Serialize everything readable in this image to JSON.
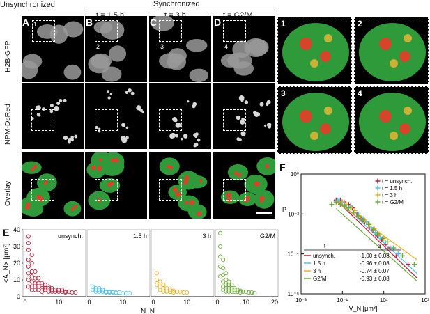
{
  "header": {
    "unsync_label": "Unsynchronized",
    "sync_label": "Synchronized",
    "col_labels": [
      "t = 1.5 h",
      "t = 3 h",
      "t = G2/M"
    ]
  },
  "panels": {
    "letters": [
      "A",
      "B",
      "C",
      "D"
    ],
    "row_labels": [
      "H2B-GFP",
      "NPM-DsRed",
      "Overlay"
    ],
    "inset_numbers": [
      "1",
      "2",
      "3",
      "4"
    ],
    "zoom_numbers": [
      "1",
      "2",
      "3",
      "4"
    ],
    "e_letter": "E",
    "f_letter": "F"
  },
  "colors": {
    "unsynch": "#b5203a",
    "h15": "#4fc3e8",
    "h3": "#e6b020",
    "g2m": "#6aaa3a"
  },
  "chart_data": [
    {
      "type": "scatter",
      "panel": "E",
      "ylabel": "<A_N> [μm²]",
      "xlabel": "N_N",
      "ylim": [
        0,
        40
      ],
      "yticks": [
        "0",
        "10",
        "20",
        "30",
        "40"
      ],
      "subplots": [
        {
          "name": "unsynch.",
          "color": "#b5203a",
          "xlim": [
            0,
            17
          ],
          "xticks": [
            "0",
            "10"
          ],
          "x": [
            1,
            1,
            1,
            1,
            1,
            1,
            1,
            1,
            2,
            2,
            2,
            2,
            2,
            2,
            2,
            3,
            3,
            3,
            3,
            3,
            4,
            4,
            4,
            4,
            5,
            5,
            5,
            5,
            6,
            6,
            6,
            7,
            7,
            7,
            8,
            8,
            8,
            9,
            9,
            10,
            10,
            11,
            11,
            12,
            12,
            13,
            14,
            15
          ],
          "y": [
            36,
            32,
            28,
            22,
            18,
            14,
            10,
            6,
            25,
            20,
            15,
            12,
            9,
            6,
            4,
            15,
            11,
            8,
            6,
            4,
            11,
            8,
            6,
            4,
            8,
            6,
            5,
            3,
            7,
            5,
            4,
            6,
            5,
            3,
            5,
            4,
            3,
            4,
            3,
            4,
            3,
            4,
            3,
            3,
            2.5,
            3,
            2.5,
            2.5
          ]
        },
        {
          "name": "1.5 h",
          "color": "#4fc3e8",
          "xlim": [
            0,
            17
          ],
          "xticks": [
            "0",
            "10"
          ],
          "x": [
            1,
            1,
            2,
            2,
            2,
            3,
            3,
            3,
            4,
            4,
            4,
            5,
            5,
            5,
            6,
            6,
            7,
            7,
            8,
            8,
            9,
            10,
            11,
            12
          ],
          "y": [
            6,
            4,
            5,
            4,
            3,
            5,
            4,
            3,
            4,
            3,
            3,
            3,
            3,
            2.5,
            3,
            2.5,
            3,
            2.5,
            2.5,
            2,
            2.5,
            2,
            2,
            2
          ]
        },
        {
          "name": "3 h",
          "color": "#e6b020",
          "xlim": [
            0,
            17
          ],
          "xticks": [
            "0",
            "10"
          ],
          "x": [
            1,
            1,
            1,
            2,
            2,
            2,
            3,
            3,
            3,
            4,
            4,
            5,
            5,
            6,
            6,
            7,
            8,
            9,
            10
          ],
          "y": [
            14,
            10,
            7,
            9,
            6,
            4,
            7,
            5,
            3,
            5,
            3,
            4,
            3,
            3.5,
            2.5,
            3,
            3,
            2.5,
            2.5
          ]
        },
        {
          "name": "G2/M",
          "color": "#6aaa3a",
          "xlim": [
            0,
            20
          ],
          "xticks": [
            "0",
            "10",
            "20"
          ],
          "x": [
            1,
            1,
            1,
            1,
            1,
            2,
            2,
            2,
            2,
            2,
            2,
            3,
            3,
            3,
            3,
            3,
            4,
            4,
            4,
            4,
            5,
            5,
            5,
            6,
            6,
            6,
            7,
            7,
            8,
            8,
            9,
            10,
            11,
            12,
            13
          ],
          "y": [
            38,
            30,
            24,
            18,
            12,
            22,
            17,
            13,
            9,
            6,
            4,
            14,
            10,
            7,
            5,
            3,
            9,
            7,
            5,
            3,
            7,
            5,
            3,
            5,
            4,
            3,
            4,
            3,
            3.5,
            2.5,
            3,
            3,
            2.5,
            2.5,
            2
          ]
        }
      ]
    },
    {
      "type": "scatter",
      "panel": "F",
      "log_x": true,
      "log_y": true,
      "xlabel": "V_N [μm³]",
      "ylabel": "P",
      "xlim": [
        0.001,
        1000
      ],
      "ylim": [
        1e-06,
        1
      ],
      "xticks": [
        "10⁻³",
        "10⁻¹",
        "10¹",
        "10³"
      ],
      "yticks": [
        "10⁰",
        "10⁻²",
        "10⁻⁴",
        "10⁻⁶"
      ],
      "series": [
        {
          "name": "t = unsynch.",
          "color": "#b5203a",
          "x": [
            0.05,
            0.08,
            0.12,
            0.2,
            0.3,
            0.5,
            0.8,
            1.2,
            2,
            3,
            5,
            8,
            12,
            20,
            40,
            150
          ],
          "y": [
            0.05,
            0.05,
            0.04,
            0.03,
            0.02,
            0.01,
            0.006,
            0.004,
            0.002,
            0.0015,
            0.0008,
            0.0005,
            0.0003,
            0.0002,
            8e-05,
            3e-05
          ]
        },
        {
          "name": "t = 1.5 h",
          "color": "#4fc3e8",
          "x": [
            0.06,
            0.1,
            0.15,
            0.25,
            0.4,
            0.6,
            1,
            1.5,
            2.5,
            4,
            7,
            12,
            25,
            50
          ],
          "y": [
            0.05,
            0.04,
            0.03,
            0.025,
            0.015,
            0.01,
            0.006,
            0.004,
            0.002,
            0.0012,
            0.0007,
            0.0004,
            0.0002,
            0.0001
          ]
        },
        {
          "name": "t = 3 h",
          "color": "#e6b020",
          "x": [
            0.05,
            0.09,
            0.15,
            0.25,
            0.4,
            0.7,
            1.2,
            2,
            3.5,
            6,
            10
          ],
          "y": [
            0.04,
            0.04,
            0.03,
            0.02,
            0.015,
            0.008,
            0.005,
            0.003,
            0.0018,
            0.001,
            0.0006
          ]
        },
        {
          "name": "t = G2/M",
          "color": "#6aaa3a",
          "x": [
            0.03,
            0.05,
            0.08,
            0.13,
            0.2,
            0.35,
            0.6,
            1,
            1.8,
            3,
            5,
            9,
            15,
            30,
            80,
            300
          ],
          "y": [
            0.03,
            0.04,
            0.03,
            0.025,
            0.02,
            0.012,
            0.008,
            0.005,
            0.003,
            0.0017,
            0.001,
            0.0006,
            0.0004,
            0.0002,
            8e-05,
            3e-05
          ]
        }
      ],
      "fits": [
        {
          "color": "#b5203a",
          "alpha": -1.0,
          "x": [
            0.05,
            400
          ]
        },
        {
          "color": "#4fc3e8",
          "alpha": -0.96,
          "x": [
            0.05,
            400
          ]
        },
        {
          "color": "#e6b020",
          "alpha": -0.74,
          "x": [
            0.05,
            400
          ]
        },
        {
          "color": "#6aaa3a",
          "alpha": -0.93,
          "x": [
            0.05,
            400
          ]
        }
      ],
      "table": {
        "col_t": "t",
        "col_alpha": "α",
        "rows": [
          {
            "t": "unsynch.",
            "alpha": "-1.00 ± 0.08",
            "color": "#b5203a"
          },
          {
            "t": "1.5 h",
            "alpha": "-0.96 ± 0.08",
            "color": "#4fc3e8"
          },
          {
            "t": "3 h",
            "alpha": "-0.74 ± 0.07",
            "color": "#e6b020"
          },
          {
            "t": "G2/M",
            "alpha": "-0.93 ± 0.08",
            "color": "#6aaa3a"
          }
        ]
      }
    }
  ]
}
